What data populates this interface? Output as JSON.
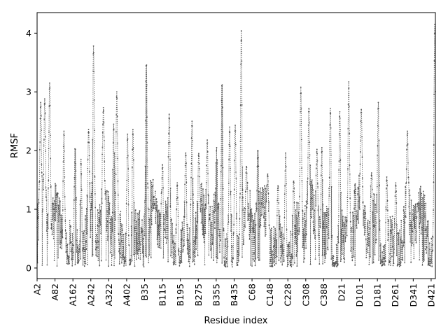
{
  "chart_data": {
    "type": "line",
    "title": "",
    "xlabel": "Residue index",
    "ylabel": "RMSF",
    "ylim": [
      -0.18,
      4.35
    ],
    "y_ticks": [
      0,
      1,
      2,
      3,
      4
    ],
    "x_tick_labels": [
      "A2",
      "A82",
      "A162",
      "A242",
      "A322",
      "A402",
      "B35",
      "B115",
      "B195",
      "B275",
      "B355",
      "B435",
      "C68",
      "C148",
      "C228",
      "C308",
      "C388",
      "D21",
      "D101",
      "D181",
      "D261",
      "D341",
      "D421"
    ],
    "x_tick_step": 80,
    "n_points": 1780,
    "series_color": "#555555",
    "line_style": "dotted",
    "marker": "dot",
    "grid": false,
    "legend": "none",
    "peaks": [
      {
        "index": 16,
        "value": 2.82
      },
      {
        "index": 34,
        "value": 2.88
      },
      {
        "index": 56,
        "value": 3.15
      },
      {
        "index": 90,
        "value": 1.28
      },
      {
        "index": 120,
        "value": 2.33
      },
      {
        "index": 170,
        "value": 2.1
      },
      {
        "index": 196,
        "value": 1.85
      },
      {
        "index": 230,
        "value": 2.36
      },
      {
        "index": 252,
        "value": 3.78
      },
      {
        "index": 296,
        "value": 2.73
      },
      {
        "index": 342,
        "value": 2.45
      },
      {
        "index": 356,
        "value": 3.0
      },
      {
        "index": 404,
        "value": 2.28
      },
      {
        "index": 428,
        "value": 2.36
      },
      {
        "index": 488,
        "value": 3.58
      },
      {
        "index": 524,
        "value": 1.1
      },
      {
        "index": 560,
        "value": 1.76
      },
      {
        "index": 590,
        "value": 2.62
      },
      {
        "index": 626,
        "value": 1.45
      },
      {
        "index": 664,
        "value": 1.96
      },
      {
        "index": 692,
        "value": 2.5
      },
      {
        "index": 722,
        "value": 1.95
      },
      {
        "index": 760,
        "value": 2.18
      },
      {
        "index": 802,
        "value": 2.05
      },
      {
        "index": 826,
        "value": 3.23
      },
      {
        "index": 860,
        "value": 2.4
      },
      {
        "index": 885,
        "value": 2.43
      },
      {
        "index": 912,
        "value": 4.04
      },
      {
        "index": 935,
        "value": 1.73
      },
      {
        "index": 986,
        "value": 2.05
      },
      {
        "index": 1030,
        "value": 1.6
      },
      {
        "index": 1076,
        "value": 1.4
      },
      {
        "index": 1110,
        "value": 1.96
      },
      {
        "index": 1146,
        "value": 1.48
      },
      {
        "index": 1178,
        "value": 3.08
      },
      {
        "index": 1214,
        "value": 2.72
      },
      {
        "index": 1250,
        "value": 2.02
      },
      {
        "index": 1272,
        "value": 2.05
      },
      {
        "index": 1310,
        "value": 2.72
      },
      {
        "index": 1352,
        "value": 2.66
      },
      {
        "index": 1392,
        "value": 3.17
      },
      {
        "index": 1420,
        "value": 1.45
      },
      {
        "index": 1448,
        "value": 2.7
      },
      {
        "index": 1494,
        "value": 1.62
      },
      {
        "index": 1524,
        "value": 2.82
      },
      {
        "index": 1562,
        "value": 1.55
      },
      {
        "index": 1602,
        "value": 1.45
      },
      {
        "index": 1654,
        "value": 2.33
      },
      {
        "index": 1700,
        "value": 1.1
      },
      {
        "index": 1776,
        "value": 4.15
      }
    ]
  }
}
